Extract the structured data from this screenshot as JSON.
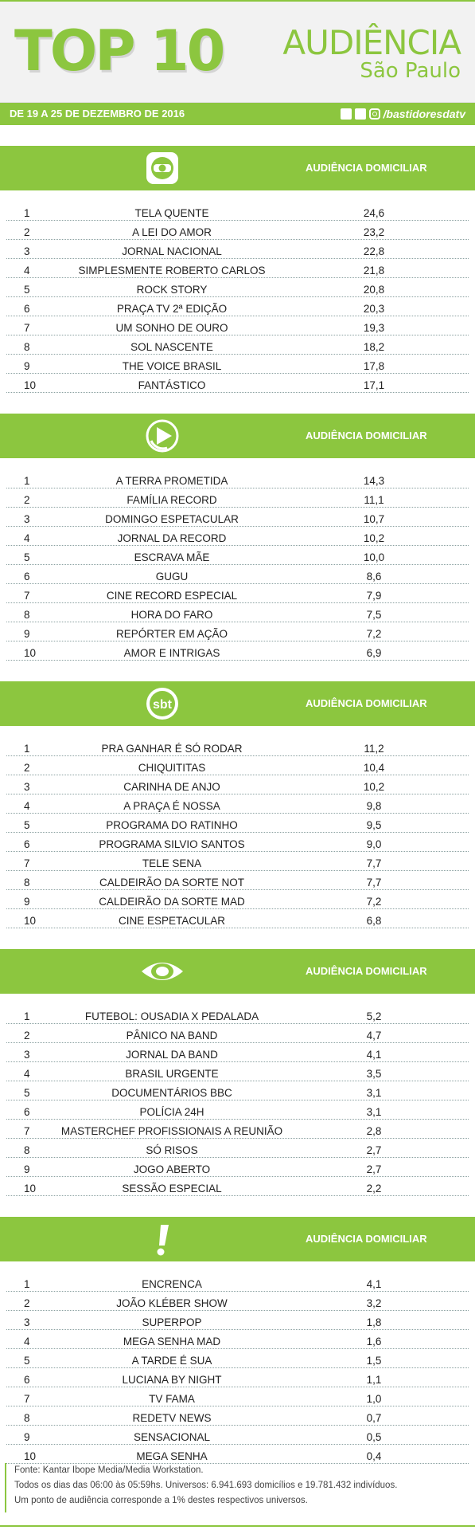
{
  "header": {
    "title": "TOP 10",
    "audiencia": "AUDIÊNCIA",
    "city": "São Paulo",
    "date_range": "DE 19 A 25 DE DEZEMBRO DE 2016",
    "handle": "/bastidoresdatv"
  },
  "colors": {
    "accent": "#8cc63f"
  },
  "sections": [
    {
      "channel_icon": "globo-logo-icon",
      "label": "AUDIÊNCIA DOMICILIAR",
      "rows": [
        {
          "rank": "1",
          "program": "TELA QUENTE",
          "value": "24,6"
        },
        {
          "rank": "2",
          "program": "A LEI DO AMOR",
          "value": "23,2"
        },
        {
          "rank": "3",
          "program": "JORNAL NACIONAL",
          "value": "22,8"
        },
        {
          "rank": "4",
          "program": "SIMPLESMENTE ROBERTO CARLOS",
          "value": "21,8"
        },
        {
          "rank": "5",
          "program": "ROCK STORY",
          "value": "20,8"
        },
        {
          "rank": "6",
          "program": "PRAÇA TV 2ª EDIÇÃO",
          "value": "20,3"
        },
        {
          "rank": "7",
          "program": "UM SONHO DE OURO",
          "value": "19,3"
        },
        {
          "rank": "8",
          "program": "SOL NASCENTE",
          "value": "18,2"
        },
        {
          "rank": "9",
          "program": "THE VOICE BRASIL",
          "value": "17,8"
        },
        {
          "rank": "10",
          "program": "FANTÁSTICO",
          "value": "17,1"
        }
      ]
    },
    {
      "channel_icon": "record-logo-icon",
      "label": "AUDIÊNCIA DOMICILIAR",
      "rows": [
        {
          "rank": "1",
          "program": "A TERRA PROMETIDA",
          "value": "14,3"
        },
        {
          "rank": "2",
          "program": "FAMÍLIA RECORD",
          "value": "11,1"
        },
        {
          "rank": "3",
          "program": "DOMINGO ESPETACULAR",
          "value": "10,7"
        },
        {
          "rank": "4",
          "program": "JORNAL DA RECORD",
          "value": "10,2"
        },
        {
          "rank": "5",
          "program": "ESCRAVA MÃE",
          "value": "10,0"
        },
        {
          "rank": "6",
          "program": "GUGU",
          "value": "8,6"
        },
        {
          "rank": "7",
          "program": "CINE RECORD ESPECIAL",
          "value": "7,9"
        },
        {
          "rank": "8",
          "program": "HORA DO FARO",
          "value": "7,5"
        },
        {
          "rank": "9",
          "program": "REPÓRTER EM AÇÃO",
          "value": "7,2"
        },
        {
          "rank": "10",
          "program": "AMOR E INTRIGAS",
          "value": "6,9"
        }
      ]
    },
    {
      "channel_icon": "sbt-logo-icon",
      "logo_text": "sbt",
      "label": "AUDIÊNCIA DOMICILIAR",
      "rows": [
        {
          "rank": "1",
          "program": "PRA GANHAR É SÓ RODAR",
          "value": "11,2"
        },
        {
          "rank": "2",
          "program": "CHIQUITITAS",
          "value": "10,4"
        },
        {
          "rank": "3",
          "program": "CARINHA DE ANJO",
          "value": "10,2"
        },
        {
          "rank": "4",
          "program": "A PRAÇA É NOSSA",
          "value": "9,8"
        },
        {
          "rank": "5",
          "program": "PROGRAMA DO RATINHO",
          "value": "9,5"
        },
        {
          "rank": "6",
          "program": "PROGRAMA SILVIO SANTOS",
          "value": "9,0"
        },
        {
          "rank": "7",
          "program": "TELE SENA",
          "value": "7,7"
        },
        {
          "rank": "8",
          "program": "CALDEIRÃO DA SORTE NOT",
          "value": "7,7"
        },
        {
          "rank": "9",
          "program": "CALDEIRÃO DA SORTE MAD",
          "value": "7,2"
        },
        {
          "rank": "10",
          "program": "CINE ESPETACULAR",
          "value": "6,8"
        }
      ]
    },
    {
      "channel_icon": "band-logo-icon",
      "label": "AUDIÊNCIA DOMICILIAR",
      "rows": [
        {
          "rank": "1",
          "program": "FUTEBOL: OUSADIA X PEDALADA",
          "value": "5,2"
        },
        {
          "rank": "2",
          "program": "PÂNICO NA BAND",
          "value": "4,7"
        },
        {
          "rank": "3",
          "program": "JORNAL DA BAND",
          "value": "4,1"
        },
        {
          "rank": "4",
          "program": "BRASIL URGENTE",
          "value": "3,5"
        },
        {
          "rank": "5",
          "program": "DOCUMENTÁRIOS BBC",
          "value": "3,1"
        },
        {
          "rank": "6",
          "program": "POLÍCIA 24H",
          "value": "3,1"
        },
        {
          "rank": "7",
          "program": "MASTERCHEF PROFISSIONAIS A REUNIÃO",
          "value": "2,8"
        },
        {
          "rank": "8",
          "program": "SÓ RISOS",
          "value": "2,7"
        },
        {
          "rank": "9",
          "program": "JOGO ABERTO",
          "value": "2,7"
        },
        {
          "rank": "10",
          "program": "SESSÃO ESPECIAL",
          "value": "2,2"
        }
      ]
    },
    {
      "channel_icon": "redetv-logo-icon",
      "logo_text": "!",
      "label": "AUDIÊNCIA DOMICILIAR",
      "rows": [
        {
          "rank": "1",
          "program": "ENCRENCA",
          "value": "4,1"
        },
        {
          "rank": "2",
          "program": "JOÃO KLÉBER SHOW",
          "value": "3,2"
        },
        {
          "rank": "3",
          "program": "SUPERPOP",
          "value": "1,8"
        },
        {
          "rank": "4",
          "program": "MEGA SENHA MAD",
          "value": "1,6"
        },
        {
          "rank": "5",
          "program": "A TARDE É SUA",
          "value": "1,5"
        },
        {
          "rank": "6",
          "program": "LUCIANA BY NIGHT",
          "value": "1,1"
        },
        {
          "rank": "7",
          "program": "TV FAMA",
          "value": "1,0"
        },
        {
          "rank": "8",
          "program": "REDETV NEWS",
          "value": "0,7"
        },
        {
          "rank": "9",
          "program": "SENSACIONAL",
          "value": "0,5"
        },
        {
          "rank": "10",
          "program": "MEGA SENHA",
          "value": "0,4"
        }
      ]
    }
  ],
  "footer": {
    "line1": "Fonte: Kantar Ibope Media/Media Workstation.",
    "line2": "Todos os dias das 06:00 às 05:59hs. Universos: 6.941.693 domicílios e 19.781.432 indivíduos.",
    "line3": "Um ponto de audiência corresponde a 1% destes respectivos universos."
  }
}
